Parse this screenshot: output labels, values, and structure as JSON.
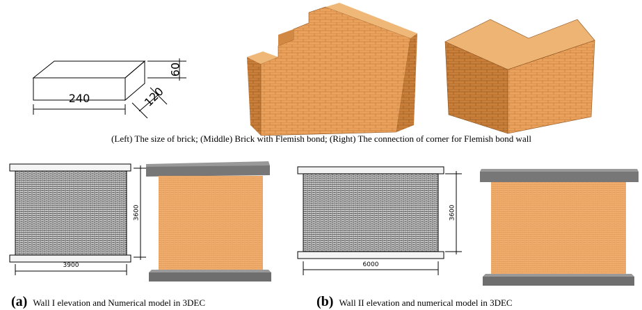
{
  "figure": {
    "brick": {
      "height": "60",
      "width": "120",
      "length": "240"
    },
    "caption_top": "(Left) The size of brick; (Middle) Brick with Flemish bond; (Right) The connection of corner for Flemish bond wall",
    "wall_1": {
      "height": "3600",
      "length": "3900",
      "label": "(a)",
      "caption": "Wall I elevation and Numerical model in 3DEC"
    },
    "wall_2": {
      "height": "3600",
      "length": "6000",
      "label": "(b)",
      "caption": "Wall II elevation and numerical model in 3DEC"
    }
  }
}
